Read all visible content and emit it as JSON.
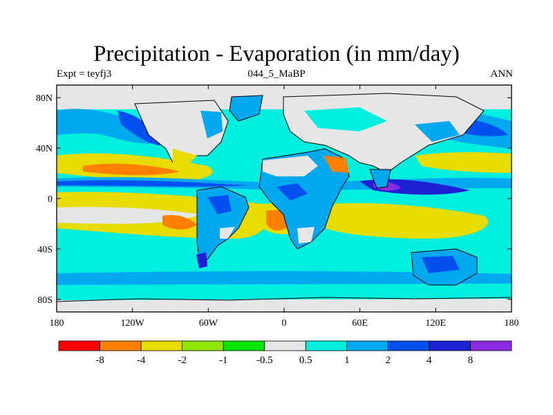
{
  "title": "Precipitation - Evaporation (in mm/day)",
  "subtitle_left": "Expt = teyfj3",
  "subtitle_center": "044_5_MaBP",
  "subtitle_right": "ANN",
  "y_axis": {
    "ticks": [
      {
        "label": "80N",
        "lat": 80
      },
      {
        "label": "40N",
        "lat": 40
      },
      {
        "label": "0",
        "lat": 0
      },
      {
        "label": "40S",
        "lat": -40
      },
      {
        "label": "80S",
        "lat": -80
      }
    ],
    "range": [
      -90,
      90
    ]
  },
  "x_axis": {
    "ticks": [
      {
        "label": "180",
        "lon": -180
      },
      {
        "label": "120W",
        "lon": -120
      },
      {
        "label": "60W",
        "lon": -60
      },
      {
        "label": "0",
        "lon": 0
      },
      {
        "label": "60E",
        "lon": 60
      },
      {
        "label": "120E",
        "lon": 120
      },
      {
        "label": "180",
        "lon": 180
      }
    ],
    "range": [
      -180,
      180
    ]
  },
  "colorbar": {
    "colors": [
      "#ff0000",
      "#ff8000",
      "#e6dc00",
      "#90e600",
      "#00e600",
      "#e6e6e6",
      "#00eedd",
      "#00a8f0",
      "#0050f0",
      "#1e1ed2",
      "#8a2be2"
    ],
    "labels": [
      "-8",
      "-4",
      "-2",
      "-1",
      "-0.5",
      "0.5",
      "1",
      "2",
      "4",
      "8"
    ]
  }
}
